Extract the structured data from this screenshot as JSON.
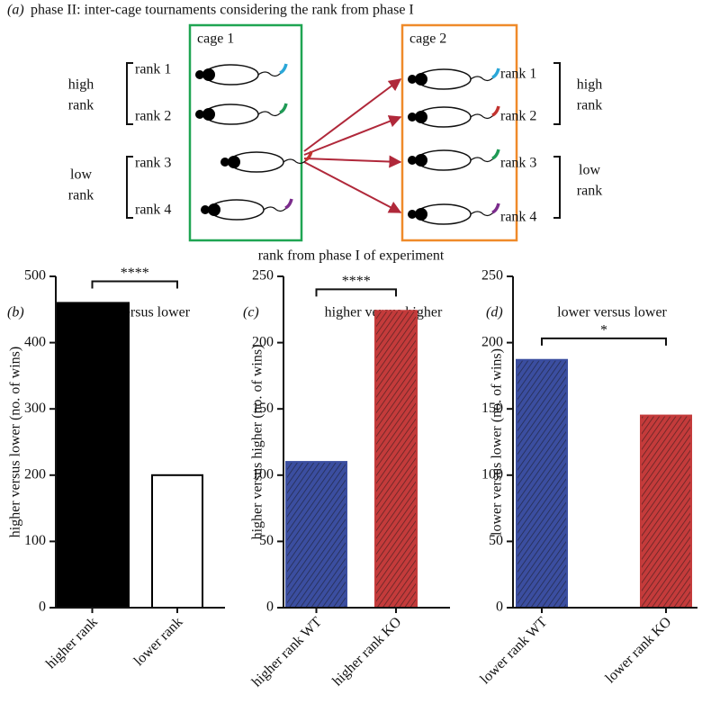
{
  "diagram": {
    "panel": "(a)",
    "title": "phase II: inter-cage tournaments considering the rank from phase I",
    "cage1": "cage 1",
    "cage2": "cage 2",
    "left_ranks": [
      "rank 1",
      "rank 2",
      "rank 3",
      "rank 4"
    ],
    "right_ranks": [
      "rank 1",
      "rank 2",
      "rank 3",
      "rank 4"
    ],
    "left_groups": [
      [
        "high",
        "rank"
      ],
      [
        "low",
        "rank"
      ]
    ],
    "right_groups": [
      [
        "high",
        "rank"
      ],
      [
        "low",
        "rank"
      ]
    ],
    "caption": "rank from phase I of experiment"
  },
  "chart_data": [
    {
      "type": "bar",
      "panel": "(b)",
      "title": "higher versus lower",
      "y_label": "higher versus lower (no. of wins)",
      "categories": [
        "higher rank",
        "lower rank"
      ],
      "values": [
        460,
        200
      ],
      "colors": [
        "#000000",
        "#ffffff"
      ],
      "hatch": false,
      "ylim": [
        0,
        500
      ],
      "yticks": [
        0,
        100,
        200,
        300,
        400,
        500
      ],
      "annotation": "****"
    },
    {
      "type": "bar",
      "panel": "(c)",
      "title": "higher versus higher",
      "y_label": "higher versus higher (no. of wins)",
      "categories": [
        "higher rank WT",
        "higher rank KO"
      ],
      "values": [
        110,
        224
      ],
      "colors": [
        "#3b4ea0",
        "#c43b3b"
      ],
      "hatch": true,
      "ylim": [
        0,
        250
      ],
      "yticks": [
        0,
        50,
        100,
        150,
        200,
        250
      ],
      "annotation": "****"
    },
    {
      "type": "bar",
      "panel": "(d)",
      "title": "lower versus lower",
      "y_label": "lower versus lower (no. of wins)",
      "categories": [
        "lower rank WT",
        "lower rank KO"
      ],
      "values": [
        187,
        145
      ],
      "colors": [
        "#3b4ea0",
        "#c43b3b"
      ],
      "hatch": true,
      "ylim": [
        0,
        250
      ],
      "yticks": [
        0,
        50,
        100,
        150,
        200,
        250
      ],
      "annotation": "*"
    }
  ]
}
